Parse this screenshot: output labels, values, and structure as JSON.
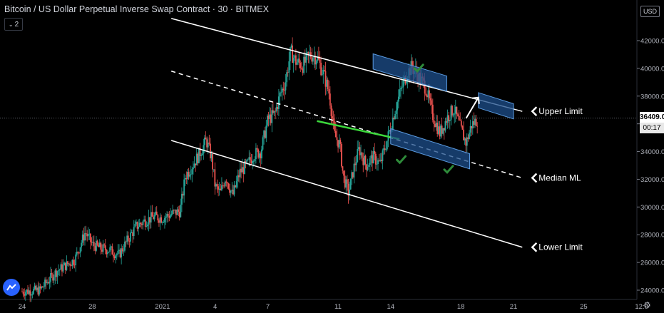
{
  "header": {
    "title": "Bitcoin / US Dollar Perpetual Inverse Swap Contract · 30 · BITMEX",
    "indicator_count": "2",
    "currency": "USD"
  },
  "price_tag": {
    "price": "36409.0",
    "countdown": "00:17"
  },
  "colors": {
    "background": "#000000",
    "up_candle": "#26a69a",
    "down_candle": "#ef5350",
    "channel_line": "#ffffff",
    "highlight_segment": "#3cd83c",
    "box_fill": "#1e4f8c",
    "box_stroke": "#5b9be0",
    "checkmark": "#2e8b3a"
  },
  "chart_data": {
    "type": "candlestick",
    "title": "Bitcoin / US Dollar Perpetual Inverse Swap Contract · 30 · BITMEX",
    "y_axis": {
      "ticks": [
        24000,
        26000,
        28000,
        30000,
        32000,
        34000,
        36000,
        38000,
        40000,
        42000
      ],
      "tick_labels": [
        "24000.0",
        "26000.0",
        "28000.0",
        "30000.0",
        "32000.0",
        "34000.0",
        "36000.0",
        "38000.0",
        "40000.0",
        "42000.0"
      ],
      "range": [
        23500,
        43200
      ]
    },
    "x_axis": {
      "tick_labels": [
        "24",
        "28",
        "2021",
        "4",
        "7",
        "11",
        "14",
        "18",
        "21",
        "25",
        "12:0"
      ],
      "tick_day_index": [
        0,
        4,
        8,
        11,
        14,
        18,
        21,
        25,
        28,
        32,
        35.3
      ],
      "range_day_index": [
        -0.8,
        36.0
      ]
    },
    "price_path": [
      [
        0,
        23900
      ],
      [
        1,
        24000
      ],
      [
        2,
        25400
      ],
      [
        3,
        26200
      ],
      [
        3.6,
        28200
      ],
      [
        4,
        27300
      ],
      [
        4.5,
        27000
      ],
      [
        5,
        26900
      ],
      [
        5.5,
        26500
      ],
      [
        6,
        27600
      ],
      [
        6.5,
        28600
      ],
      [
        7,
        29000
      ],
      [
        7.5,
        29300
      ],
      [
        8,
        29200
      ],
      [
        8.5,
        29500
      ],
      [
        9,
        29700
      ],
      [
        9.3,
        32200
      ],
      [
        10,
        33600
      ],
      [
        10.5,
        34800
      ],
      [
        10.8,
        33500
      ],
      [
        11,
        31500
      ],
      [
        11.3,
        31000
      ],
      [
        11.6,
        32200
      ],
      [
        12,
        30800
      ],
      [
        12.4,
        32500
      ],
      [
        12.8,
        33000
      ],
      [
        13.2,
        33800
      ],
      [
        13.6,
        34000
      ],
      [
        14,
        36300
      ],
      [
        14.4,
        36700
      ],
      [
        14.7,
        38100
      ],
      [
        15,
        39000
      ],
      [
        15.3,
        41200
      ],
      [
        15.6,
        40500
      ],
      [
        16,
        40200
      ],
      [
        16.4,
        41000
      ],
      [
        16.8,
        40800
      ],
      [
        17.2,
        39500
      ],
      [
        17.5,
        38200
      ],
      [
        17.8,
        35200
      ],
      [
        18.1,
        34500
      ],
      [
        18.3,
        32200
      ],
      [
        18.6,
        31000
      ],
      [
        18.9,
        32800
      ],
      [
        19.2,
        34200
      ],
      [
        19.6,
        33000
      ],
      [
        20,
        33600
      ],
      [
        20.4,
        33100
      ],
      [
        20.8,
        34800
      ],
      [
        21.2,
        36800
      ],
      [
        21.6,
        38500
      ],
      [
        21.9,
        39600
      ],
      [
        22.2,
        40100
      ],
      [
        22.6,
        39400
      ],
      [
        23,
        38600
      ],
      [
        23.4,
        36600
      ],
      [
        23.8,
        35300
      ],
      [
        24.2,
        36400
      ],
      [
        24.6,
        37100
      ],
      [
        25,
        35600
      ],
      [
        25.3,
        34600
      ],
      [
        25.6,
        35900
      ],
      [
        26,
        36400
      ]
    ],
    "channel_lines": [
      {
        "name": "Upper Limit",
        "from": [
          8.5,
          43600
        ],
        "to": [
          28.5,
          36900
        ]
      },
      {
        "name": "Median ML",
        "from": [
          8.5,
          39800
        ],
        "to": [
          28.5,
          32100
        ],
        "style": "dashed"
      },
      {
        "name": "Lower Limit",
        "from": [
          8.5,
          34800
        ],
        "to": [
          28.5,
          27100
        ]
      }
    ],
    "highlight_segment": {
      "from": [
        16.8,
        36200
      ],
      "to": [
        21.5,
        34900
      ]
    },
    "annotation_boxes": [
      {
        "from": [
          20.0,
          40500
        ],
        "to": [
          24.2,
          38900
        ],
        "height_price": 1100
      },
      {
        "from": [
          26.0,
          37700
        ],
        "to": [
          28.0,
          36900
        ],
        "height_price": 1100
      },
      {
        "from": [
          21.0,
          35100
        ],
        "to": [
          25.5,
          33300
        ],
        "height_price": 1100
      }
    ],
    "checkmarks": [
      [
        22.6,
        40000
      ],
      [
        21.6,
        33400
      ],
      [
        24.3,
        32700
      ]
    ],
    "arrow": {
      "from": [
        25.3,
        36400
      ],
      "to": [
        26.0,
        37900
      ]
    },
    "annotations": [
      {
        "text": "Upper Limit",
        "at": [
          28.5,
          36900
        ]
      },
      {
        "text": "Median ML",
        "at": [
          28.5,
          32100
        ]
      },
      {
        "text": "Lower Limit",
        "at": [
          28.5,
          27100
        ]
      }
    ],
    "current_price": 36409.0,
    "grid": false,
    "legend": "none"
  }
}
